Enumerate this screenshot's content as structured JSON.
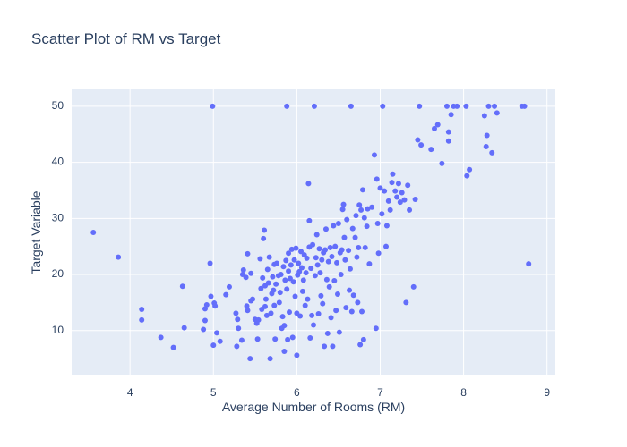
{
  "chart_data": {
    "type": "scatter",
    "title": "Scatter Plot of RM vs Target",
    "xlabel": "Average Number of Rooms (RM)",
    "ylabel": "Target Variable",
    "xlim": [
      3.3,
      9.1
    ],
    "ylim": [
      2,
      53
    ],
    "x_ticks": [
      4,
      5,
      6,
      7,
      8,
      9
    ],
    "y_ticks": [
      10,
      20,
      30,
      40,
      50
    ],
    "grid": true,
    "colors": {
      "marker": "#636efa",
      "plot_bg": "#e5ecf6",
      "grid": "#ffffff",
      "text": "#2a3f5f"
    },
    "points": [
      [
        3.56,
        27.5
      ],
      [
        3.86,
        23.1
      ],
      [
        4.14,
        13.8
      ],
      [
        4.14,
        11.9
      ],
      [
        4.37,
        8.8
      ],
      [
        4.52,
        7.0
      ],
      [
        4.63,
        17.9
      ],
      [
        4.65,
        10.5
      ],
      [
        4.88,
        10.2
      ],
      [
        4.9,
        11.8
      ],
      [
        4.9,
        13.9
      ],
      [
        4.92,
        14.6
      ],
      [
        4.96,
        22.0
      ],
      [
        4.97,
        16.1
      ],
      [
        4.99,
        50.0
      ],
      [
        5.0,
        7.4
      ],
      [
        5.01,
        14.9
      ],
      [
        5.02,
        14.4
      ],
      [
        5.04,
        9.6
      ],
      [
        5.08,
        8.1
      ],
      [
        5.15,
        16.4
      ],
      [
        5.19,
        17.8
      ],
      [
        5.27,
        13.1
      ],
      [
        5.28,
        7.2
      ],
      [
        5.3,
        10.4
      ],
      [
        5.29,
        12.0
      ],
      [
        5.34,
        8.3
      ],
      [
        5.35,
        20.0
      ],
      [
        5.36,
        20.8
      ],
      [
        5.39,
        19.5
      ],
      [
        5.4,
        14.4
      ],
      [
        5.41,
        13.6
      ],
      [
        5.41,
        23.7
      ],
      [
        5.44,
        5.0
      ],
      [
        5.45,
        20.2
      ],
      [
        5.45,
        15.3
      ],
      [
        5.47,
        15.6
      ],
      [
        5.5,
        12.0
      ],
      [
        5.52,
        11.3
      ],
      [
        5.53,
        8.5
      ],
      [
        5.54,
        11.9
      ],
      [
        5.56,
        22.8
      ],
      [
        5.57,
        17.5
      ],
      [
        5.58,
        13.8
      ],
      [
        5.59,
        19.4
      ],
      [
        5.6,
        26.4
      ],
      [
        5.61,
        27.9
      ],
      [
        5.62,
        18.0
      ],
      [
        5.62,
        14.3
      ],
      [
        5.63,
        15.6
      ],
      [
        5.64,
        12.7
      ],
      [
        5.65,
        20.9
      ],
      [
        5.66,
        18.5
      ],
      [
        5.67,
        23.1
      ],
      [
        5.68,
        5.0
      ],
      [
        5.69,
        13.1
      ],
      [
        5.7,
        16.6
      ],
      [
        5.71,
        19.6
      ],
      [
        5.72,
        17.2
      ],
      [
        5.73,
        14.5
      ],
      [
        5.73,
        21.8
      ],
      [
        5.74,
        8.5
      ],
      [
        5.75,
        18.3
      ],
      [
        5.76,
        22.0
      ],
      [
        5.78,
        19.8
      ],
      [
        5.79,
        15.0
      ],
      [
        5.8,
        16.8
      ],
      [
        5.81,
        20.0
      ],
      [
        5.82,
        10.4
      ],
      [
        5.83,
        12.5
      ],
      [
        5.84,
        21.4
      ],
      [
        5.85,
        10.9
      ],
      [
        5.85,
        6.3
      ],
      [
        5.86,
        19.0
      ],
      [
        5.87,
        22.5
      ],
      [
        5.88,
        17.4
      ],
      [
        5.88,
        50.0
      ],
      [
        5.89,
        8.4
      ],
      [
        5.9,
        20.6
      ],
      [
        5.9,
        23.8
      ],
      [
        5.91,
        13.3
      ],
      [
        5.92,
        19.3
      ],
      [
        5.93,
        21.7
      ],
      [
        5.94,
        24.5
      ],
      [
        5.95,
        8.8
      ],
      [
        5.96,
        18.7
      ],
      [
        5.97,
        22.6
      ],
      [
        5.98,
        16.1
      ],
      [
        5.99,
        24.7
      ],
      [
        6.0,
        13.1
      ],
      [
        6.0,
        5.6
      ],
      [
        6.01,
        19.9
      ],
      [
        6.02,
        22.0
      ],
      [
        6.03,
        20.5
      ],
      [
        6.04,
        12.6
      ],
      [
        6.05,
        24.1
      ],
      [
        6.06,
        21.2
      ],
      [
        6.07,
        17.0
      ],
      [
        6.08,
        19.0
      ],
      [
        6.09,
        23.5
      ],
      [
        6.1,
        14.5
      ],
      [
        6.11,
        20.3
      ],
      [
        6.12,
        22.9
      ],
      [
        6.13,
        15.6
      ],
      [
        6.14,
        36.2
      ],
      [
        6.15,
        24.9
      ],
      [
        6.15,
        29.6
      ],
      [
        6.16,
        8.7
      ],
      [
        6.17,
        21.1
      ],
      [
        6.18,
        12.7
      ],
      [
        6.19,
        25.3
      ],
      [
        6.2,
        11.0
      ],
      [
        6.21,
        50.0
      ],
      [
        6.22,
        19.8
      ],
      [
        6.23,
        23.0
      ],
      [
        6.24,
        27.1
      ],
      [
        6.25,
        21.7
      ],
      [
        6.26,
        13.0
      ],
      [
        6.27,
        24.6
      ],
      [
        6.28,
        20.3
      ],
      [
        6.29,
        16.2
      ],
      [
        6.3,
        22.6
      ],
      [
        6.31,
        14.8
      ],
      [
        6.32,
        23.9
      ],
      [
        6.33,
        7.2
      ],
      [
        6.34,
        24.4
      ],
      [
        6.35,
        28.1
      ],
      [
        6.36,
        19.1
      ],
      [
        6.37,
        9.5
      ],
      [
        6.38,
        22.3
      ],
      [
        6.39,
        17.8
      ],
      [
        6.4,
        24.8
      ],
      [
        6.41,
        12.3
      ],
      [
        6.42,
        23.2
      ],
      [
        6.43,
        7.2
      ],
      [
        6.44,
        28.7
      ],
      [
        6.45,
        18.9
      ],
      [
        6.46,
        25.0
      ],
      [
        6.47,
        13.6
      ],
      [
        6.48,
        22.1
      ],
      [
        6.49,
        16.5
      ],
      [
        6.5,
        29.1
      ],
      [
        6.51,
        9.7
      ],
      [
        6.52,
        23.9
      ],
      [
        6.53,
        20.0
      ],
      [
        6.54,
        24.4
      ],
      [
        6.55,
        31.6
      ],
      [
        6.56,
        32.5
      ],
      [
        6.57,
        26.6
      ],
      [
        6.58,
        22.6
      ],
      [
        6.59,
        14.1
      ],
      [
        6.6,
        29.8
      ],
      [
        6.62,
        24.3
      ],
      [
        6.63,
        17.2
      ],
      [
        6.64,
        21.0
      ],
      [
        6.65,
        50.0
      ],
      [
        6.66,
        13.4
      ],
      [
        6.67,
        28.2
      ],
      [
        6.68,
        16.3
      ],
      [
        6.7,
        26.6
      ],
      [
        6.71,
        30.5
      ],
      [
        6.72,
        23.1
      ],
      [
        6.73,
        15.0
      ],
      [
        6.74,
        24.8
      ],
      [
        6.75,
        32.4
      ],
      [
        6.76,
        7.5
      ],
      [
        6.77,
        31.5
      ],
      [
        6.78,
        13.4
      ],
      [
        6.79,
        35.1
      ],
      [
        6.8,
        8.4
      ],
      [
        6.81,
        30.1
      ],
      [
        6.82,
        24.8
      ],
      [
        6.84,
        28.6
      ],
      [
        6.85,
        31.7
      ],
      [
        6.87,
        21.9
      ],
      [
        6.9,
        32.0
      ],
      [
        6.93,
        41.3
      ],
      [
        6.95,
        10.4
      ],
      [
        6.96,
        37.0
      ],
      [
        6.97,
        29.1
      ],
      [
        6.98,
        23.8
      ],
      [
        7.0,
        35.4
      ],
      [
        7.02,
        30.8
      ],
      [
        7.03,
        50.0
      ],
      [
        7.05,
        34.9
      ],
      [
        7.07,
        25.0
      ],
      [
        7.08,
        28.7
      ],
      [
        7.1,
        33.1
      ],
      [
        7.12,
        31.5
      ],
      [
        7.14,
        36.4
      ],
      [
        7.15,
        37.9
      ],
      [
        7.18,
        34.9
      ],
      [
        7.2,
        33.8
      ],
      [
        7.22,
        36.2
      ],
      [
        7.24,
        32.9
      ],
      [
        7.26,
        34.6
      ],
      [
        7.29,
        33.3
      ],
      [
        7.31,
        15.0
      ],
      [
        7.33,
        35.9
      ],
      [
        7.35,
        31.5
      ],
      [
        7.4,
        17.8
      ],
      [
        7.42,
        33.4
      ],
      [
        7.45,
        44.0
      ],
      [
        7.47,
        50.0
      ],
      [
        7.49,
        43.1
      ],
      [
        7.61,
        42.3
      ],
      [
        7.65,
        46.0
      ],
      [
        7.69,
        46.7
      ],
      [
        7.74,
        39.8
      ],
      [
        7.8,
        50.0
      ],
      [
        7.82,
        43.8
      ],
      [
        7.82,
        45.4
      ],
      [
        7.85,
        48.5
      ],
      [
        7.88,
        50.0
      ],
      [
        7.92,
        50.0
      ],
      [
        8.03,
        50.0
      ],
      [
        8.04,
        37.6
      ],
      [
        8.07,
        38.7
      ],
      [
        8.25,
        48.3
      ],
      [
        8.27,
        42.8
      ],
      [
        8.28,
        44.8
      ],
      [
        8.3,
        50.0
      ],
      [
        8.34,
        41.7
      ],
      [
        8.37,
        50.0
      ],
      [
        8.4,
        48.8
      ],
      [
        8.7,
        50.0
      ],
      [
        8.73,
        50.0
      ],
      [
        8.78,
        21.9
      ]
    ]
  }
}
